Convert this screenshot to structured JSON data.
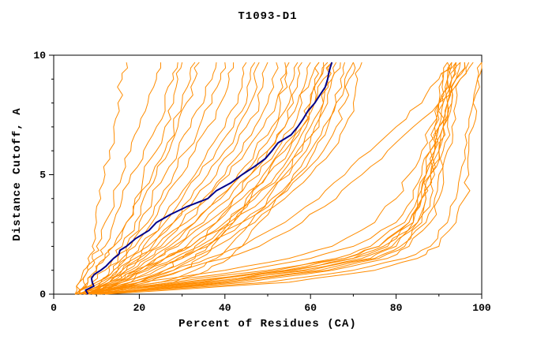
{
  "title": "T1093-D1",
  "axes": {
    "xlabel": "Percent of Residues (CA)",
    "ylabel": "Distance Cutoff, A",
    "x_ticks": [
      0,
      20,
      40,
      60,
      80,
      100
    ],
    "y_ticks": [
      0,
      5,
      10
    ],
    "x_minor_step": 10,
    "y_minor_step": 1
  },
  "colors": {
    "models": "#ff8c00",
    "highlight": "#00008b",
    "frame": "#000000",
    "background": "#ffffff"
  },
  "chart_data": {
    "type": "line",
    "title": "T1093-D1",
    "xlabel": "Percent of Residues (CA)",
    "ylabel": "Distance Cutoff, A",
    "xlim": [
      0,
      100
    ],
    "ylim": [
      0,
      10
    ],
    "grid": false,
    "legend": "none",
    "y_grid": [
      0,
      0.5,
      1,
      1.5,
      2,
      3,
      4,
      5,
      6,
      7,
      8,
      9,
      9.7
    ],
    "series": [
      {
        "x_at_y": [
          5,
          6,
          7,
          8,
          9,
          10,
          11,
          12,
          13,
          14,
          15,
          16,
          17
        ]
      },
      {
        "x_at_y": [
          6,
          7,
          8,
          9,
          10,
          12,
          14,
          16,
          18,
          20,
          22,
          24,
          25
        ]
      },
      {
        "x_at_y": [
          5,
          6,
          8,
          10,
          12,
          14,
          16,
          18,
          21,
          24,
          26,
          28,
          29
        ]
      },
      {
        "x_at_y": [
          6,
          8,
          10,
          12,
          14,
          17,
          20,
          23,
          26,
          28,
          30,
          32,
          33
        ]
      },
      {
        "x_at_y": [
          5,
          8,
          10,
          12,
          14,
          17,
          19,
          21,
          24,
          26,
          28,
          29,
          30
        ]
      },
      {
        "x_at_y": [
          6,
          9,
          12,
          14,
          16,
          19,
          21,
          24,
          27,
          29,
          31,
          33,
          34
        ]
      },
      {
        "x_at_y": [
          5,
          10,
          13,
          15,
          17,
          20,
          23,
          26,
          29,
          32,
          35,
          37,
          38
        ]
      },
      {
        "x_at_y": [
          7,
          11,
          14,
          16,
          18,
          22,
          25,
          28,
          31,
          34,
          37,
          39,
          40
        ]
      },
      {
        "x_at_y": [
          6,
          12,
          15,
          17,
          19,
          23,
          26,
          30,
          33,
          36,
          39,
          41,
          42
        ]
      },
      {
        "x_at_y": [
          8,
          13,
          16,
          18,
          21,
          25,
          29,
          33,
          36,
          40,
          43,
          44,
          45
        ]
      },
      {
        "x_at_y": [
          5,
          10,
          14,
          17,
          20,
          26,
          30,
          34,
          38,
          42,
          45,
          46,
          47
        ]
      },
      {
        "x_at_y": [
          9,
          14,
          17,
          20,
          23,
          28,
          32,
          36,
          40,
          43,
          46,
          47,
          48
        ]
      },
      {
        "x_at_y": [
          6,
          11,
          15,
          19,
          22,
          28,
          33,
          38,
          42,
          45,
          48,
          49,
          50
        ]
      },
      {
        "x_at_y": [
          8,
          13,
          17,
          21,
          25,
          30,
          35,
          40,
          44,
          47,
          50,
          51,
          52
        ]
      },
      {
        "x_at_y": [
          7,
          12,
          16,
          20,
          24,
          31,
          36,
          41,
          45,
          49,
          52,
          53,
          54
        ]
      },
      {
        "x_at_y": [
          10,
          15,
          19,
          23,
          27,
          33,
          38,
          43,
          47,
          51,
          53,
          54,
          55
        ]
      },
      {
        "x_at_y": [
          6,
          13,
          18,
          22,
          26,
          33,
          39,
          44,
          48,
          52,
          55,
          56,
          57
        ]
      },
      {
        "x_at_y": [
          9,
          15,
          20,
          24,
          28,
          35,
          41,
          46,
          50,
          54,
          56,
          57,
          58
        ]
      },
      {
        "x_at_y": [
          7,
          14,
          19,
          24,
          29,
          36,
          42,
          48,
          52,
          56,
          58,
          59,
          60
        ]
      },
      {
        "x_at_y": [
          10,
          16,
          21,
          26,
          31,
          38,
          44,
          50,
          55,
          58,
          60,
          61,
          62
        ]
      },
      {
        "x_at_y": [
          8,
          15,
          21,
          26,
          32,
          40,
          46,
          52,
          56,
          59,
          61,
          62,
          63
        ]
      },
      {
        "x_at_y": [
          6,
          13,
          20,
          26,
          32,
          41,
          47,
          53,
          58,
          61,
          63,
          64,
          65
        ]
      },
      {
        "x_at_y": [
          9,
          16,
          22,
          28,
          34,
          42,
          49,
          55,
          59,
          62,
          64,
          65,
          66
        ]
      },
      {
        "x_at_y": [
          11,
          18,
          24,
          30,
          36,
          44,
          51,
          57,
          61,
          64,
          66,
          67,
          68
        ]
      },
      {
        "x_at_y": [
          8,
          16,
          23,
          29,
          35,
          44,
          52,
          58,
          63,
          66,
          68,
          69,
          70
        ]
      },
      {
        "x_at_y": [
          12,
          20,
          26,
          32,
          38,
          47,
          54,
          60,
          65,
          68,
          70,
          71,
          72
        ]
      },
      {
        "x_at_y": [
          5,
          18,
          26,
          30,
          33,
          38,
          42,
          46,
          50,
          54,
          57,
          60,
          62
        ]
      },
      {
        "x_at_y": [
          6,
          22,
          30,
          34,
          37,
          42,
          46,
          50,
          54,
          58,
          61,
          63,
          65
        ]
      },
      {
        "x_at_y": [
          5,
          25,
          33,
          38,
          41,
          46,
          50,
          54,
          57,
          60,
          63,
          65,
          67
        ]
      },
      {
        "x_at_y": [
          7,
          28,
          36,
          41,
          44,
          48,
          52,
          56,
          60,
          63,
          66,
          68,
          70
        ]
      },
      {
        "x_at_y": [
          6,
          20,
          28,
          33,
          36,
          41,
          45,
          49,
          53,
          57,
          60,
          62,
          64
        ]
      },
      {
        "x_at_y": [
          8,
          30,
          55,
          70,
          78,
          84,
          86,
          87,
          88,
          89,
          90,
          91,
          92
        ]
      },
      {
        "x_at_y": [
          10,
          35,
          60,
          74,
          80,
          85,
          87,
          88,
          89,
          90,
          91,
          92,
          93
        ]
      },
      {
        "x_at_y": [
          7,
          28,
          50,
          68,
          76,
          83,
          85,
          87,
          88,
          89,
          90,
          91,
          92
        ]
      },
      {
        "x_at_y": [
          9,
          40,
          62,
          75,
          81,
          86,
          88,
          89,
          90,
          91,
          92,
          93,
          94
        ]
      },
      {
        "x_at_y": [
          6,
          25,
          45,
          60,
          70,
          80,
          84,
          86,
          88,
          90,
          91,
          92,
          93
        ]
      },
      {
        "x_at_y": [
          11,
          38,
          58,
          72,
          79,
          85,
          87,
          88,
          90,
          91,
          92,
          93,
          95
        ]
      },
      {
        "x_at_y": [
          8,
          32,
          52,
          66,
          74,
          82,
          85,
          87,
          89,
          90,
          92,
          93,
          94
        ]
      },
      {
        "x_at_y": [
          12,
          42,
          64,
          76,
          82,
          87,
          89,
          90,
          91,
          92,
          93,
          94,
          96
        ]
      },
      {
        "x_at_y": [
          9,
          36,
          56,
          70,
          77,
          84,
          86,
          88,
          89,
          91,
          92,
          94,
          95
        ]
      },
      {
        "x_at_y": [
          7,
          20,
          40,
          55,
          65,
          75,
          80,
          83,
          86,
          88,
          90,
          92,
          93
        ]
      },
      {
        "x_at_y": [
          10,
          45,
          65,
          78,
          83,
          88,
          90,
          91,
          92,
          93,
          94,
          95,
          97
        ]
      },
      {
        "x_at_y": [
          8,
          34,
          54,
          68,
          76,
          83,
          86,
          88,
          90,
          91,
          93,
          94,
          96
        ]
      },
      {
        "x_at_y": [
          10,
          50,
          70,
          82,
          88,
          92,
          94,
          95,
          96,
          97,
          98,
          99,
          100
        ]
      },
      {
        "x_at_y": [
          12,
          55,
          75,
          85,
          90,
          94,
          96,
          97,
          97,
          98,
          98,
          99,
          100
        ]
      },
      {
        "x_at_y": [
          8,
          20,
          30,
          40,
          48,
          58,
          66,
          72,
          78,
          84,
          90,
          95,
          98
        ]
      },
      {
        "x_at_y": [
          7,
          18,
          28,
          36,
          44,
          54,
          62,
          68,
          74,
          80,
          86,
          90,
          94
        ]
      }
    ],
    "highlight": {
      "x_at_y": [
        8,
        9,
        11,
        14,
        17,
        24,
        36,
        44,
        51,
        57,
        61,
        64,
        65
      ]
    }
  }
}
